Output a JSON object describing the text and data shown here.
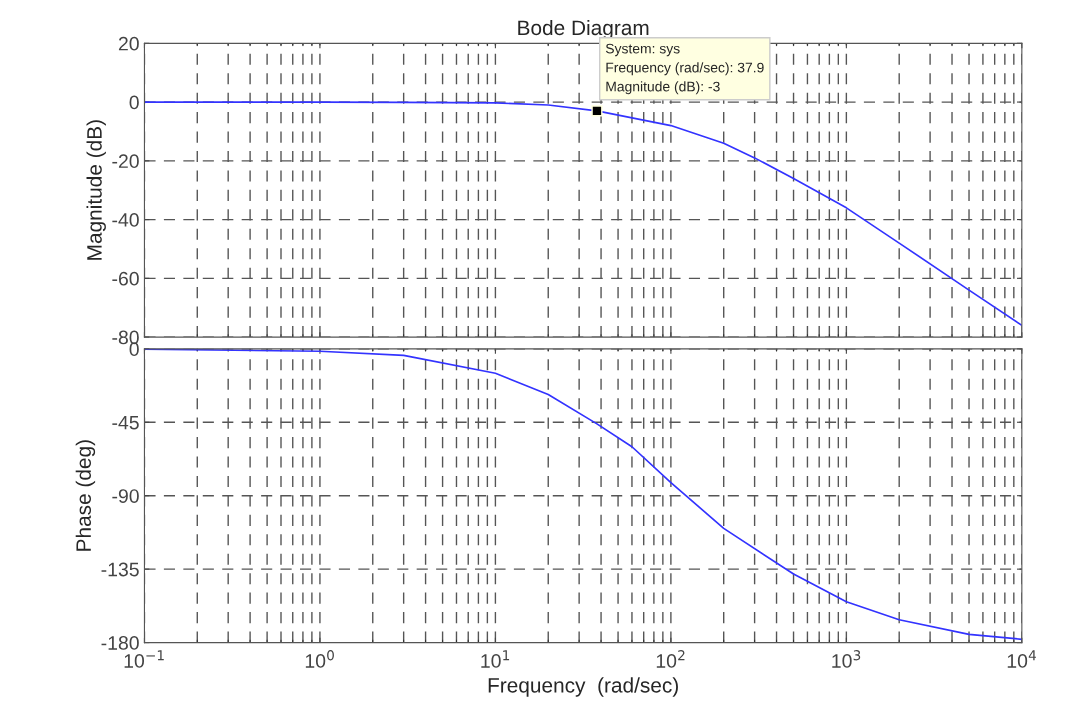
{
  "chart_data": [
    {
      "type": "line",
      "title": "Bode Diagram",
      "ylabel": "Magnitude (dB)",
      "log": "x",
      "grid": true,
      "tick_labels": "y",
      "marker": "none",
      "line_style": "solid",
      "x": [
        0.1,
        1,
        3,
        10,
        20,
        37.9,
        100,
        200,
        300,
        500,
        1000,
        2000,
        5000,
        10000
      ],
      "series": [
        {
          "color": "#3333ff",
          "values": [
            0,
            0,
            -0.1,
            -0.3,
            -1,
            -3,
            -8,
            -14,
            -19,
            -26,
            -36,
            -48,
            -64,
            -76
          ]
        }
      ],
      "xlim": [
        0.1,
        10000
      ],
      "xticks": [
        {
          "value": 0.1,
          "label": null
        },
        {
          "value": 1,
          "label": null
        },
        {
          "value": 10,
          "label": null
        },
        {
          "value": 100,
          "label": null
        },
        {
          "value": 1000,
          "label": null
        },
        {
          "value": 10000,
          "label": null
        }
      ],
      "ylim": [
        -80,
        20
      ],
      "yticks": [
        -80,
        -60,
        -40,
        -20,
        0,
        20
      ],
      "annotations": [
        {
          "text": "System: sys\nFrequency (rad/sec): 37.9\nMagnitude (dB): -3",
          "x": 37.9,
          "y": -3
        }
      ]
    },
    {
      "type": "line",
      "xlabel": "Frequency  (rad/sec)",
      "ylabel": "Phase (deg)",
      "log": "x",
      "grid": true,
      "marker": "none",
      "line_style": "solid",
      "x": [
        0.1,
        1,
        3,
        10,
        20,
        37.9,
        60,
        100,
        200,
        500,
        1000,
        2000,
        5000,
        10000
      ],
      "series": [
        {
          "color": "#3333ff",
          "values": [
            -0.2,
            -1.5,
            -4,
            -15,
            -28,
            -46,
            -60,
            -82,
            -110,
            -138,
            -155,
            -166,
            -175,
            -178
          ]
        }
      ],
      "xlim": [
        0.1,
        10000
      ],
      "xticks": [
        {
          "value": 0.1,
          "label": "10$^{−1}$"
        },
        {
          "value": 1,
          "label": "10$^{0}$"
        },
        {
          "value": 10,
          "label": "10$^{1}$"
        },
        {
          "value": 100,
          "label": "10$^{2}$"
        },
        {
          "value": 1000,
          "label": "10$^{3}$"
        },
        {
          "value": 10000,
          "label": "10$^{4}$"
        }
      ],
      "ylim": [
        -180,
        0
      ],
      "yticks": [
        -180,
        -135,
        -90,
        -45,
        0
      ]
    }
  ]
}
